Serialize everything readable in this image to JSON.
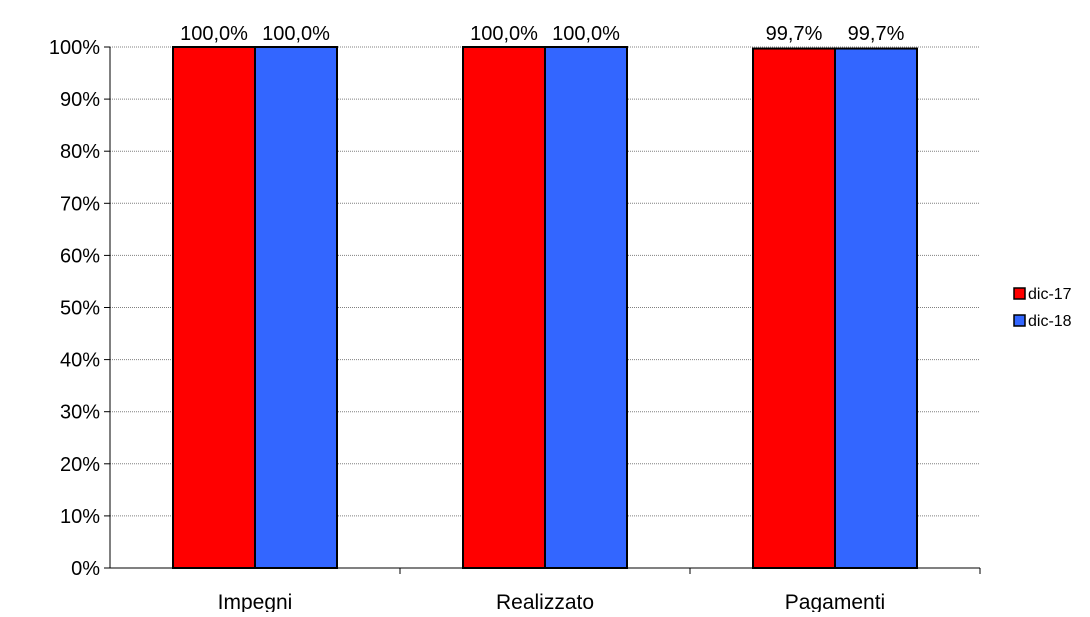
{
  "chart_data": {
    "type": "bar",
    "categories": [
      "Impegni",
      "Realizzato",
      "Pagamenti"
    ],
    "series": [
      {
        "name": "dic-17",
        "values": [
          100.0,
          100.0,
          99.7
        ],
        "labels": [
          "100,0%",
          "100,0%",
          "99,7%"
        ],
        "color": "#ff0000"
      },
      {
        "name": "dic-18",
        "values": [
          100.0,
          100.0,
          99.7
        ],
        "labels": [
          "100,0%",
          "100,0%",
          "99,7%"
        ],
        "color": "#3366ff"
      }
    ],
    "yticks": [
      "0%",
      "10%",
      "20%",
      "30%",
      "40%",
      "50%",
      "60%",
      "70%",
      "80%",
      "90%",
      "100%"
    ],
    "ylim": [
      0,
      100
    ],
    "grid": true,
    "legend_position": "right",
    "title": "",
    "xlabel": "",
    "ylabel": ""
  }
}
